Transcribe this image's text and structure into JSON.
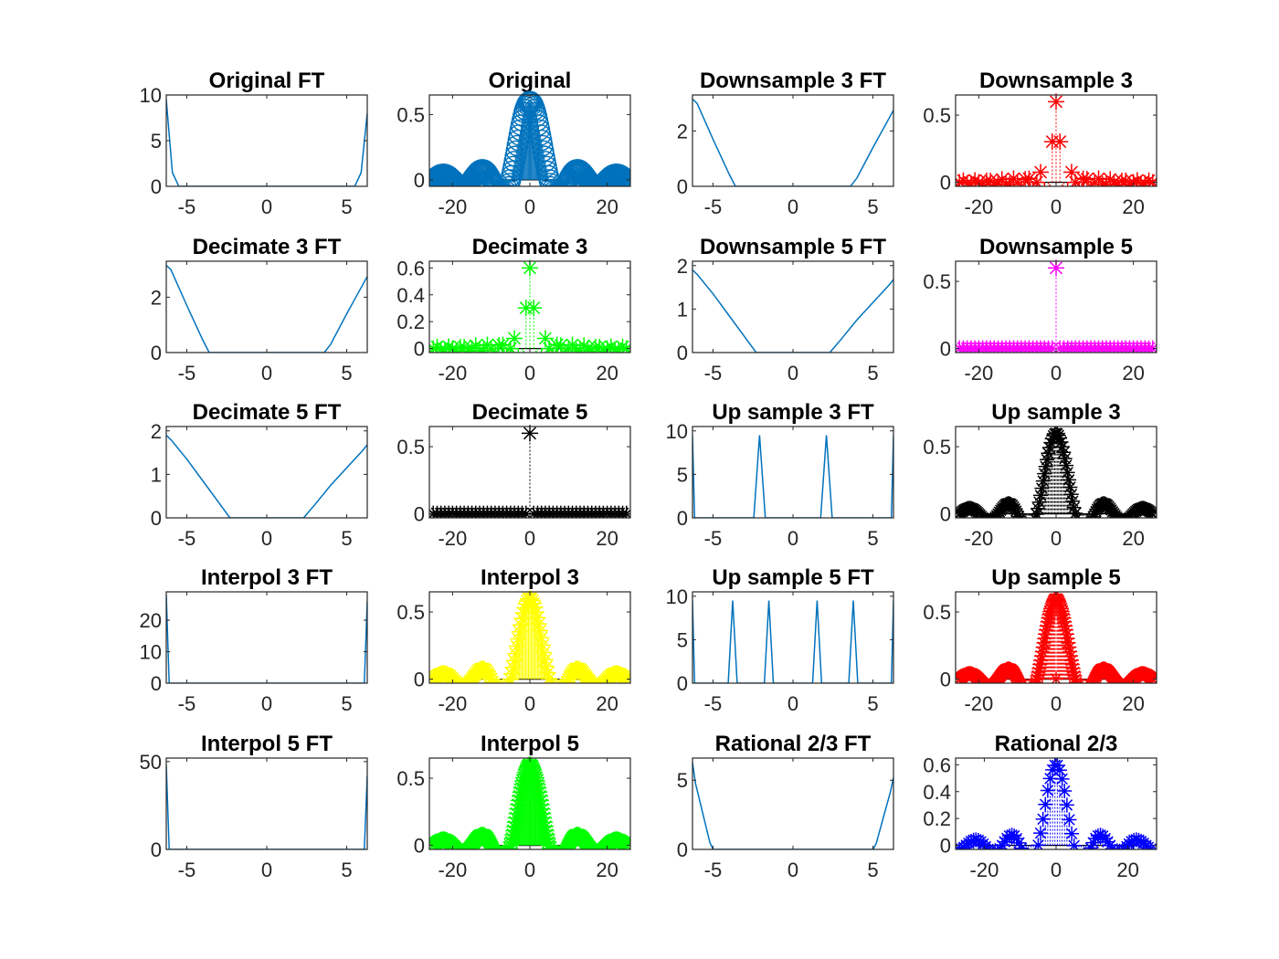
{
  "figure": {
    "background": "#ffffff",
    "axes_color": "#262626",
    "ft_line_color": "#0072BD"
  },
  "chart_data": [
    {
      "type": "line",
      "panel": "ft",
      "title": "Original FT",
      "xlim": [
        -6.283,
        6.283
      ],
      "ylim": [
        0,
        10
      ],
      "xticks": [
        -5,
        0,
        5
      ],
      "yticks": [
        0,
        5,
        10
      ],
      "xtick_labels": [
        "-5",
        "0",
        "5"
      ],
      "ytick_labels": [
        "0",
        "5",
        "10"
      ],
      "x": [
        -6.283,
        -5.9,
        -5.5,
        -4,
        0,
        4,
        5.5,
        5.9,
        6.283
      ],
      "y": [
        9.5,
        1.5,
        0,
        0,
        0,
        0,
        0,
        1.5,
        8
      ],
      "color": "#0072BD"
    },
    {
      "type": "stem",
      "panel": "signal",
      "title": "Original",
      "xlim": [
        -26,
        26
      ],
      "ylim": [
        -0.05,
        0.65
      ],
      "xticks": [
        -20,
        0,
        20
      ],
      "yticks": [
        0,
        0.5
      ],
      "xtick_labels": [
        "-20",
        "0",
        "20"
      ],
      "ytick_labels": [
        "0",
        "0.5"
      ],
      "n_range": [
        -25,
        25
      ],
      "step": 0.25,
      "bw": 0.2,
      "marker": "o",
      "color": "#0072BD",
      "marker_size": 11,
      "line_style": "solid"
    },
    {
      "type": "line",
      "panel": "ft",
      "title": "Downsample 3 FT",
      "xlim": [
        -6.283,
        6.283
      ],
      "ylim": [
        0,
        3.3
      ],
      "xticks": [
        -5,
        0,
        5
      ],
      "yticks": [
        0,
        2
      ],
      "xtick_labels": [
        "-5",
        "0",
        "5"
      ],
      "ytick_labels": [
        "0",
        "2"
      ],
      "x": [
        -6.283,
        -6,
        -5,
        -4,
        -3.6,
        0,
        3.6,
        4,
        5,
        6,
        6.283
      ],
      "y": [
        3.15,
        3.0,
        1.7,
        0.45,
        0,
        0,
        0,
        0.3,
        1.4,
        2.45,
        2.75
      ],
      "color": "#0072BD"
    },
    {
      "type": "stem",
      "panel": "signal",
      "title": "Downsample 3",
      "xlim": [
        -26,
        26
      ],
      "ylim": [
        -0.03,
        0.65
      ],
      "xticks": [
        -20,
        0,
        20
      ],
      "yticks": [
        0,
        0.5
      ],
      "xtick_labels": [
        "-20",
        "0",
        "20"
      ],
      "ytick_labels": [
        "0",
        "0.5"
      ],
      "n_range": [
        -25,
        25
      ],
      "step": 1,
      "bw": 0.2,
      "sample_scale": 3,
      "marker": "*",
      "color": "#FF0000",
      "marker_size": 9,
      "line_style": "dotted"
    },
    {
      "type": "line",
      "panel": "ft",
      "title": "Decimate 3 FT",
      "xlim": [
        -6.283,
        6.283
      ],
      "ylim": [
        0,
        3.3
      ],
      "xticks": [
        -5,
        0,
        5
      ],
      "yticks": [
        0,
        2
      ],
      "xtick_labels": [
        "-5",
        "0",
        "5"
      ],
      "ytick_labels": [
        "0",
        "2"
      ],
      "x": [
        -6.283,
        -6,
        -5,
        -4,
        -3.6,
        0,
        3.6,
        4,
        5,
        6,
        6.283
      ],
      "y": [
        3.15,
        3.0,
        1.7,
        0.45,
        0,
        0,
        0,
        0.3,
        1.4,
        2.45,
        2.75
      ],
      "color": "#0072BD"
    },
    {
      "type": "stem",
      "panel": "signal",
      "title": "Decimate 3",
      "xlim": [
        -26,
        26
      ],
      "ylim": [
        -0.03,
        0.65
      ],
      "xticks": [
        -20,
        0,
        20
      ],
      "yticks": [
        0,
        0.2,
        0.4,
        0.6
      ],
      "xtick_labels": [
        "-20",
        "0",
        "20"
      ],
      "ytick_labels": [
        "0",
        "0.2",
        "0.4",
        "0.6"
      ],
      "n_range": [
        -25,
        25
      ],
      "step": 1,
      "bw": 0.2,
      "sample_scale": 3,
      "marker": "*",
      "color": "#00FF00",
      "marker_size": 9,
      "line_style": "dotted"
    },
    {
      "type": "line",
      "panel": "ft",
      "title": "Downsample 5 FT",
      "xlim": [
        -6.283,
        6.283
      ],
      "ylim": [
        0,
        2.1
      ],
      "xticks": [
        -5,
        0,
        5
      ],
      "yticks": [
        0,
        1,
        2
      ],
      "xtick_labels": [
        "-5",
        "0",
        "5"
      ],
      "ytick_labels": [
        "0",
        "1",
        "2"
      ],
      "x": [
        -6.283,
        -6,
        -5,
        -4,
        -3,
        -2.3,
        0,
        2.3,
        3,
        4,
        5,
        6,
        6.283
      ],
      "y": [
        1.9,
        1.8,
        1.35,
        0.85,
        0.35,
        0,
        0,
        0,
        0.3,
        0.75,
        1.15,
        1.55,
        1.68
      ],
      "color": "#0072BD"
    },
    {
      "type": "stem",
      "panel": "signal",
      "title": "Downsample 5",
      "xlim": [
        -26,
        26
      ],
      "ylim": [
        -0.03,
        0.65
      ],
      "xticks": [
        -20,
        0,
        20
      ],
      "yticks": [
        0,
        0.5
      ],
      "xtick_labels": [
        "-20",
        "0",
        "20"
      ],
      "ytick_labels": [
        "0",
        "0.5"
      ],
      "n_range": [
        -25,
        25
      ],
      "step": 1,
      "bw": 0.2,
      "sample_scale": 5,
      "marker": "*",
      "color": "#FF00FF",
      "marker_size": 9,
      "line_style": "dotted"
    },
    {
      "type": "line",
      "panel": "ft",
      "title": "Decimate 5 FT",
      "xlim": [
        -6.283,
        6.283
      ],
      "ylim": [
        0,
        2.1
      ],
      "xticks": [
        -5,
        0,
        5
      ],
      "yticks": [
        0,
        1,
        2
      ],
      "xtick_labels": [
        "-5",
        "0",
        "5"
      ],
      "ytick_labels": [
        "0",
        "1",
        "2"
      ],
      "x": [
        -6.283,
        -6,
        -5,
        -4,
        -3,
        -2.3,
        0,
        2.3,
        3,
        4,
        5,
        6,
        6.283
      ],
      "y": [
        1.9,
        1.8,
        1.35,
        0.85,
        0.35,
        0,
        0,
        0,
        0.3,
        0.75,
        1.15,
        1.55,
        1.68
      ],
      "color": "#0072BD"
    },
    {
      "type": "stem",
      "panel": "signal",
      "title": "Decimate 5",
      "xlim": [
        -26,
        26
      ],
      "ylim": [
        -0.03,
        0.65
      ],
      "xticks": [
        -20,
        0,
        20
      ],
      "yticks": [
        0,
        0.5
      ],
      "xtick_labels": [
        "-20",
        "0",
        "20"
      ],
      "ytick_labels": [
        "0",
        "0.5"
      ],
      "n_range": [
        -25,
        25
      ],
      "step": 1,
      "bw": 0.2,
      "sample_scale": 5,
      "marker": "*",
      "color": "#000000",
      "marker_size": 9,
      "line_style": "dotted"
    },
    {
      "type": "line",
      "panel": "ft",
      "title": "Up sample 3 FT",
      "xlim": [
        -6.283,
        6.283
      ],
      "ylim": [
        0,
        10.5
      ],
      "xticks": [
        -5,
        0,
        5
      ],
      "yticks": [
        0,
        5,
        10
      ],
      "xtick_labels": [
        "-5",
        "0",
        "5"
      ],
      "ytick_labels": [
        "0",
        "5",
        "10"
      ],
      "x": [
        -6.283,
        -6.15,
        -2.45,
        -2.09,
        -1.73,
        1.73,
        2.09,
        2.45,
        6.15,
        6.283
      ],
      "y": [
        9.5,
        0,
        0,
        9.5,
        0,
        0,
        9.5,
        0,
        0,
        9.5
      ],
      "color": "#0072BD"
    },
    {
      "type": "stem",
      "panel": "signal",
      "title": "Up sample 3",
      "xlim": [
        -26,
        26
      ],
      "ylim": [
        -0.03,
        0.65
      ],
      "xticks": [
        -20,
        0,
        20
      ],
      "yticks": [
        0,
        0.5
      ],
      "xtick_labels": [
        "-20",
        "0",
        "20"
      ],
      "ytick_labels": [
        "0",
        "0.5"
      ],
      "n_range": [
        -25,
        25
      ],
      "step": 0.333,
      "bw": 0.2,
      "marker": "*",
      "color": "#000000",
      "marker_size": 8,
      "line_style": "dotted",
      "zero_at_origin": true
    },
    {
      "type": "line",
      "panel": "ft",
      "title": "Interpol 3 FT",
      "xlim": [
        -6.283,
        6.283
      ],
      "ylim": [
        0,
        29
      ],
      "xticks": [
        -5,
        0,
        5
      ],
      "yticks": [
        0,
        10,
        20
      ],
      "xtick_labels": [
        "-5",
        "0",
        "5"
      ],
      "ytick_labels": [
        "0",
        "10",
        "20"
      ],
      "x": [
        -6.283,
        -6.1,
        0,
        6.1,
        6.283
      ],
      "y": [
        28,
        0,
        0,
        0,
        26
      ],
      "color": "#0072BD"
    },
    {
      "type": "stem",
      "panel": "signal",
      "title": "Interpol 3",
      "xlim": [
        -26,
        26
      ],
      "ylim": [
        -0.03,
        0.65
      ],
      "xticks": [
        -20,
        0,
        20
      ],
      "yticks": [
        0,
        0.5
      ],
      "xtick_labels": [
        "-20",
        "0",
        "20"
      ],
      "ytick_labels": [
        "0",
        "0.5"
      ],
      "n_range": [
        -25,
        25
      ],
      "step": 0.333,
      "bw": 0.2,
      "marker": "*",
      "color": "#FFFF00",
      "marker_size": 9,
      "line_style": "solid"
    },
    {
      "type": "line",
      "panel": "ft",
      "title": "Up sample 5 FT",
      "xlim": [
        -6.283,
        6.283
      ],
      "ylim": [
        0,
        10.5
      ],
      "xticks": [
        -5,
        0,
        5
      ],
      "yticks": [
        0,
        5,
        10
      ],
      "xtick_labels": [
        "-5",
        "0",
        "5"
      ],
      "ytick_labels": [
        "0",
        "5",
        "10"
      ],
      "x": [
        -6.283,
        -6.15,
        -4.05,
        -3.77,
        -3.49,
        -1.79,
        -1.51,
        -1.23,
        1.23,
        1.51,
        1.79,
        3.49,
        3.77,
        4.05,
        6.15,
        6.283
      ],
      "y": [
        9.5,
        0,
        0,
        9.5,
        0,
        0,
        9.5,
        0,
        0,
        9.5,
        0,
        0,
        9.5,
        0,
        0,
        9.5
      ],
      "color": "#0072BD"
    },
    {
      "type": "stem",
      "panel": "signal",
      "title": "Up sample 5",
      "xlim": [
        -26,
        26
      ],
      "ylim": [
        -0.03,
        0.65
      ],
      "xticks": [
        -20,
        0,
        20
      ],
      "yticks": [
        0,
        0.5
      ],
      "xtick_labels": [
        "-20",
        "0",
        "20"
      ],
      "ytick_labels": [
        "0",
        "0.5"
      ],
      "n_range": [
        -25,
        25
      ],
      "step": 0.2,
      "bw": 0.2,
      "marker": "*",
      "color": "#FF0000",
      "marker_size": 8,
      "line_style": "dotted",
      "zero_at_origin": true
    },
    {
      "type": "line",
      "panel": "ft",
      "title": "Interpol 5 FT",
      "xlim": [
        -6.283,
        6.283
      ],
      "ylim": [
        0,
        52
      ],
      "xticks": [
        -5,
        0,
        5
      ],
      "yticks": [
        0,
        50
      ],
      "xtick_labels": [
        "-5",
        "0",
        "5"
      ],
      "ytick_labels": [
        "0",
        "50"
      ],
      "x": [
        -6.283,
        -6.1,
        0,
        6.1,
        6.283
      ],
      "y": [
        48,
        0,
        0,
        0,
        42
      ],
      "color": "#0072BD"
    },
    {
      "type": "stem",
      "panel": "signal",
      "title": "Interpol 5",
      "xlim": [
        -26,
        26
      ],
      "ylim": [
        -0.03,
        0.65
      ],
      "xticks": [
        -20,
        0,
        20
      ],
      "yticks": [
        0,
        0.5
      ],
      "xtick_labels": [
        "-20",
        "0",
        "20"
      ],
      "ytick_labels": [
        "0",
        "0.5"
      ],
      "n_range": [
        -25,
        25
      ],
      "step": 0.2,
      "bw": 0.2,
      "marker": "*",
      "color": "#00FF00",
      "marker_size": 9,
      "line_style": "solid"
    },
    {
      "type": "line",
      "panel": "ft",
      "title": "Rational 2/3 FT",
      "xlim": [
        -6.283,
        6.283
      ],
      "ylim": [
        0,
        6.6
      ],
      "xticks": [
        -5,
        0,
        5
      ],
      "yticks": [
        0,
        5
      ],
      "xtick_labels": [
        "-5",
        "0",
        "5"
      ],
      "ytick_labels": [
        "0",
        "5"
      ],
      "x": [
        -6.283,
        -6.1,
        -5.2,
        -5,
        0,
        5,
        5.2,
        6.1,
        6.283
      ],
      "y": [
        6.3,
        4.8,
        0.5,
        0,
        0,
        0,
        0.4,
        4.2,
        5.2
      ],
      "color": "#0072BD"
    },
    {
      "type": "stem",
      "panel": "signal",
      "title": "Rational 2/3",
      "xlim": [
        -28,
        28
      ],
      "ylim": [
        -0.03,
        0.65
      ],
      "xticks": [
        -20,
        0,
        20
      ],
      "yticks": [
        0,
        0.2,
        0.4,
        0.6
      ],
      "xtick_labels": [
        "-20",
        "0",
        "20"
      ],
      "ytick_labels": [
        "0",
        "0.2",
        "0.4",
        "0.6"
      ],
      "n_range": [
        -27,
        27
      ],
      "step": 0.667,
      "bw": 0.2,
      "marker": "*",
      "color": "#0000FF",
      "marker_size": 8,
      "line_style": "dotted"
    }
  ]
}
